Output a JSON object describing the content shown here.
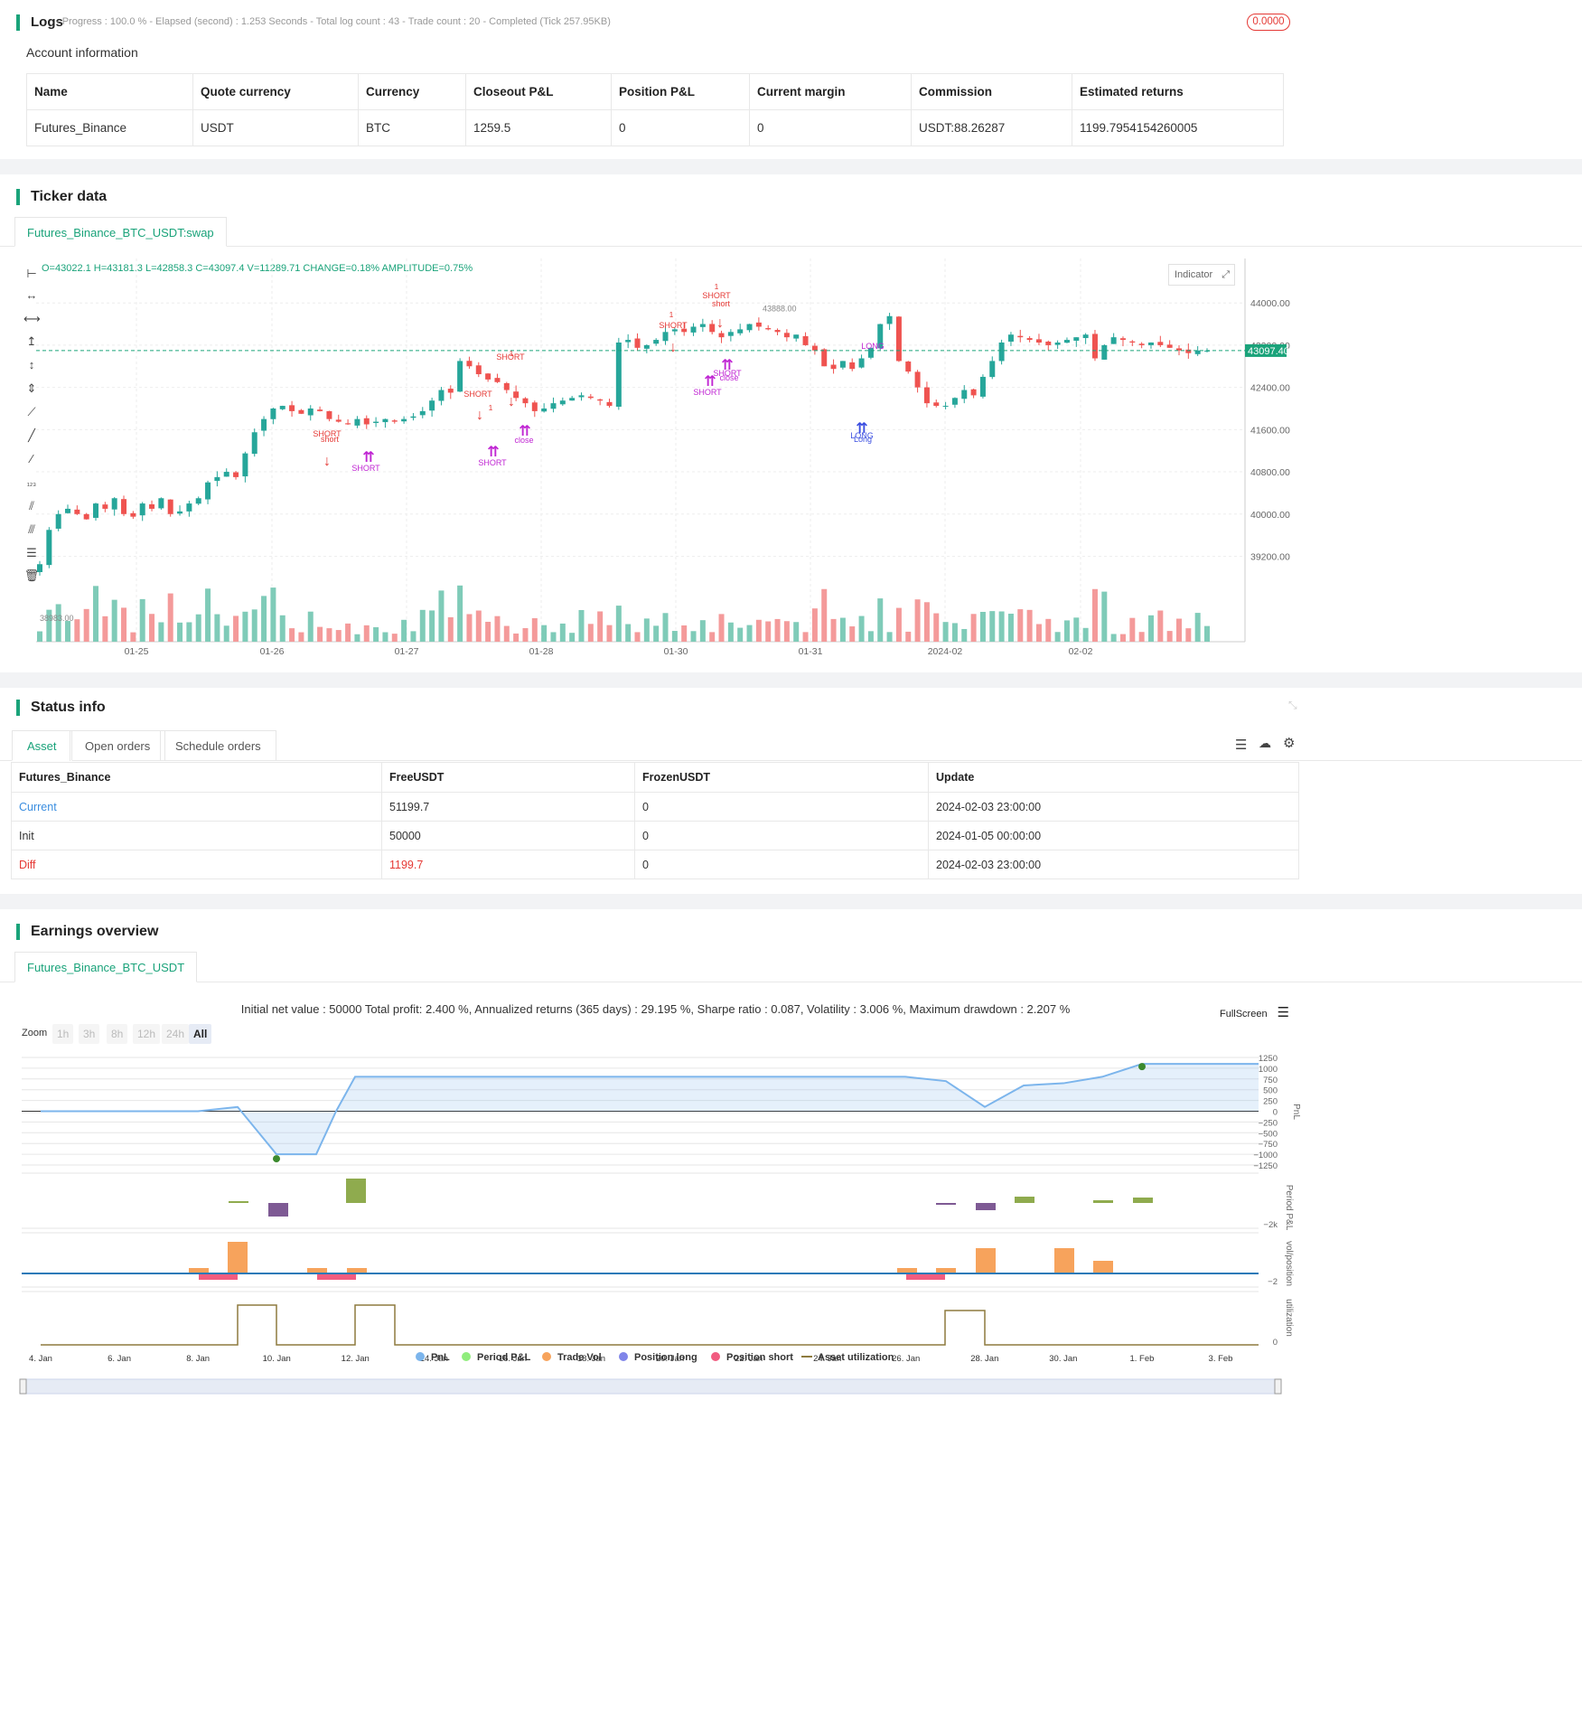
{
  "logs": {
    "title": "Logs",
    "status": "- Progress : 100.0 % - Elapsed (second) : 1.253  Seconds - Total log count : 43 - Trade count : 20 - Completed (Tick 257.95KB)",
    "badge": "0.0000"
  },
  "account": {
    "title": "Account information",
    "headers": [
      "Name",
      "Quote currency",
      "Currency",
      "Closeout P&L",
      "Position P&L",
      "Current margin",
      "Commission",
      "Estimated returns"
    ],
    "row": [
      "Futures_Binance",
      "USDT",
      "BTC",
      "1259.5",
      "0",
      "0",
      "USDT:88.26287",
      "1199.7954154260005"
    ]
  },
  "ticker": {
    "title": "Ticker data",
    "tab": "Futures_Binance_BTC_USDT:swap",
    "ohlc": "O=43022.1 H=43181.3 L=42858.3 C=43097.4 V=11289.71 CHANGE=0.18% AMPLITUDE=0.75%",
    "indicator_label": "Indicator",
    "price_tag": "43097.40",
    "high_label": "43888.00",
    "low_label": "38983.00",
    "chart_data": {
      "type": "candlestick",
      "y_ticks": [
        "44000.00",
        "43200.00",
        "42400.00",
        "41600.00",
        "40800.00",
        "40000.00",
        "39200.00"
      ],
      "x_ticks": [
        "01-25",
        "01-26",
        "01-27",
        "01-28",
        "01-30",
        "01-31",
        "2024-02",
        "02-02"
      ],
      "last_price": 43097.4,
      "high": 43888,
      "low": 38983,
      "ylim": [
        38900,
        44500
      ],
      "close_series": [
        39050,
        39700,
        40000,
        40100,
        40000,
        39900,
        40200,
        40100,
        40300,
        40000,
        39950,
        40200,
        40100,
        40300,
        40000,
        40050,
        40200,
        40300,
        40600,
        40700,
        40800,
        40700,
        41150,
        41550,
        41800,
        42000,
        42050,
        41950,
        41900,
        42000,
        41950,
        41800,
        41750,
        41700,
        41800,
        41700,
        41750,
        41800,
        41750,
        41800,
        41850,
        41950,
        42150,
        42350,
        42300,
        42900,
        42800,
        42650,
        42550,
        42500,
        42350,
        42200,
        42100,
        41950,
        42000,
        42100,
        42150,
        42200,
        42250,
        42200,
        42150,
        42050,
        43250,
        43300,
        43150,
        43200,
        43300,
        43450,
        43500,
        43450,
        43550,
        43600,
        43450,
        43350,
        43450,
        43500,
        43600,
        43550,
        43500,
        43450,
        43350,
        43400,
        43200,
        43100,
        42800,
        42750,
        42900,
        42750,
        42950,
        43150,
        43600,
        43750,
        42900,
        42700,
        42400,
        42100,
        42050,
        42050,
        42200,
        42350,
        42250,
        42600,
        42900,
        43250,
        43400,
        43350,
        43300,
        43250,
        43200,
        43250,
        43300,
        43350,
        43400,
        42950,
        43200,
        43350,
        43300,
        43250,
        43200,
        43250,
        43200,
        43150,
        43100,
        43050,
        43100,
        43097
      ]
    },
    "markers": [
      "SHORT",
      "short",
      "SHORT",
      "SHORT",
      "SHORT",
      "SHORT",
      "close",
      "SHORT",
      "SHORT",
      "short",
      "SHORT",
      "SHORT",
      "close",
      "LONG",
      "Long",
      "LONG",
      "1",
      "1",
      "1",
      "1"
    ]
  },
  "status": {
    "title": "Status info",
    "tabs": [
      "Asset",
      "Open orders",
      "Schedule orders"
    ],
    "headers": [
      "Futures_Binance",
      "FreeUSDT",
      "FrozenUSDT",
      "Update"
    ],
    "rows": [
      [
        "Current",
        "51199.7",
        "0",
        "2024-02-03 23:00:00"
      ],
      [
        "Init",
        "50000",
        "0",
        "2024-01-05 00:00:00"
      ],
      [
        "Diff",
        "1199.7",
        "0",
        "2024-02-03 23:00:00"
      ]
    ]
  },
  "earnings": {
    "title": "Earnings overview",
    "tab": "Futures_Binance_BTC_USDT",
    "summary": "Initial net value : 50000 Total profit: 2.400 %, Annualized returns (365 days) : 29.195 %, Sharpe ratio : 0.087, Volatility : 3.006 %, Maximum drawdown : 2.207 %",
    "fullscreen": "FullScreen",
    "zoom_label": "Zoom",
    "zoom_options": [
      "1h",
      "3h",
      "8h",
      "12h",
      "24h",
      "All"
    ],
    "pnl_ticks": [
      "1250",
      "1000",
      "750",
      "500",
      "250",
      "0",
      "−250",
      "−500",
      "−750",
      "−1000",
      "−1250"
    ],
    "axis_labels": [
      "PnL",
      "Period P&L",
      "vol/position",
      "utilization"
    ],
    "period_tick": "−2k",
    "vol_tick": "−2",
    "util_tick": "0",
    "x_ticks": [
      "4. Jan",
      "6. Jan",
      "8. Jan",
      "10. Jan",
      "12. Jan",
      "14. Jan",
      "16. Jan",
      "18. Jan",
      "20. Jan",
      "22. Jan",
      "24. Jan",
      "26. Jan",
      "28. Jan",
      "30. Jan",
      "1. Feb",
      "3. Feb"
    ],
    "legend": [
      {
        "name": "PnL",
        "color": "#7cb5ec"
      },
      {
        "name": "Period P&L",
        "color": "#90ed7d"
      },
      {
        "name": "Trade Vol",
        "color": "#f7a35c"
      },
      {
        "name": "Position long",
        "color": "#8085e9"
      },
      {
        "name": "Position short",
        "color": "#f15c80"
      },
      {
        "name": "Asset utilization",
        "color": "#8d7a3e"
      }
    ],
    "chart_data": {
      "type": "line",
      "x": [
        "4. Jan",
        "8. Jan",
        "9. Jan",
        "10. Jan",
        "11. Jan",
        "11. Jan",
        "12. Jan",
        "26. Jan",
        "27. Jan",
        "28. Jan",
        "29. Jan",
        "30. Jan",
        "31. Jan",
        "1. Feb",
        "3. Feb"
      ],
      "y": [
        0,
        0,
        100,
        -1000,
        -1000,
        0,
        800,
        800,
        700,
        100,
        600,
        650,
        800,
        1100,
        1100
      ]
    }
  }
}
